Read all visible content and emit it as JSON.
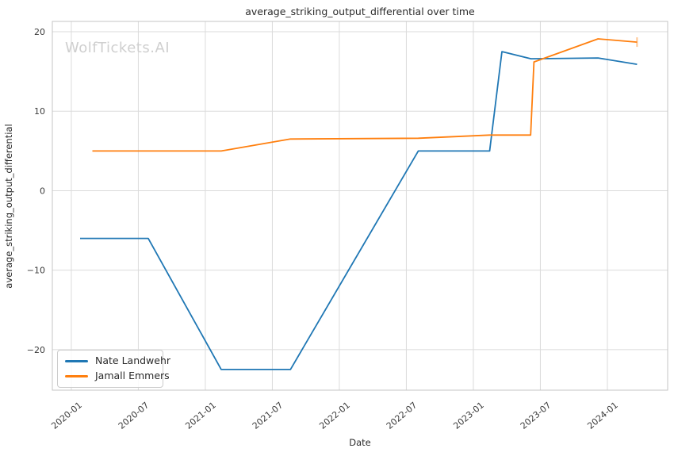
{
  "watermark": "WolfTickets.AI",
  "colors": {
    "series_blue": "#1f77b4",
    "series_orange": "#ff7f0e",
    "grid": "#dbdbdb",
    "spine": "#c4c4c4",
    "tick_text": "#3b3b3b",
    "watermark": "#cfcfcf",
    "background": "#ffffff"
  },
  "legend": {
    "items": [
      {
        "label": "Nate Landwehr",
        "color": "#1f77b4"
      },
      {
        "label": "Jamall Emmers",
        "color": "#ff7f0e"
      }
    ]
  },
  "chart_data": {
    "type": "line",
    "title": "average_striking_output_differential over time",
    "xlabel": "Date",
    "ylabel": "average_striking_output_differential",
    "grid": true,
    "legend_position": "lower left",
    "x_tick_labels": [
      "2020-01",
      "2020-07",
      "2021-01",
      "2021-07",
      "2022-01",
      "2022-07",
      "2023-01",
      "2023-07",
      "2024-01"
    ],
    "y_tick_labels": [
      "20",
      "10",
      "0",
      "−10",
      "−20"
    ],
    "y_tick_values": [
      20,
      10,
      0,
      -10,
      -20
    ],
    "xlim_months_since_2020_01": [
      -1.7,
      53.4
    ],
    "ylim": [
      -25.1,
      21.3
    ],
    "series": [
      {
        "name": "Nate Landwehr",
        "color": "#1f77b4",
        "end_cap": false,
        "points": [
          [
            "2020-01-25",
            -6.0
          ],
          [
            "2020-07-28",
            -6.0
          ],
          [
            "2021-02-14",
            -22.5
          ],
          [
            "2021-08-20",
            -22.5
          ],
          [
            "2022-08-03",
            5.0
          ],
          [
            "2023-02-15",
            5.0
          ],
          [
            "2023-03-18",
            17.5
          ],
          [
            "2023-06-06",
            16.6
          ],
          [
            "2023-12-06",
            16.7
          ],
          [
            "2024-03-21",
            15.9
          ]
        ]
      },
      {
        "name": "Jamall Emmers",
        "color": "#ff7f0e",
        "end_cap": true,
        "points": [
          [
            "2020-02-28",
            5.0
          ],
          [
            "2021-02-14",
            5.0
          ],
          [
            "2021-08-20",
            6.5
          ],
          [
            "2022-08-03",
            6.6
          ],
          [
            "2023-02-15",
            7.0
          ],
          [
            "2023-06-05",
            7.0
          ],
          [
            "2023-06-14",
            16.2
          ],
          [
            "2023-12-06",
            19.1
          ],
          [
            "2024-03-21",
            18.7
          ]
        ]
      }
    ]
  }
}
